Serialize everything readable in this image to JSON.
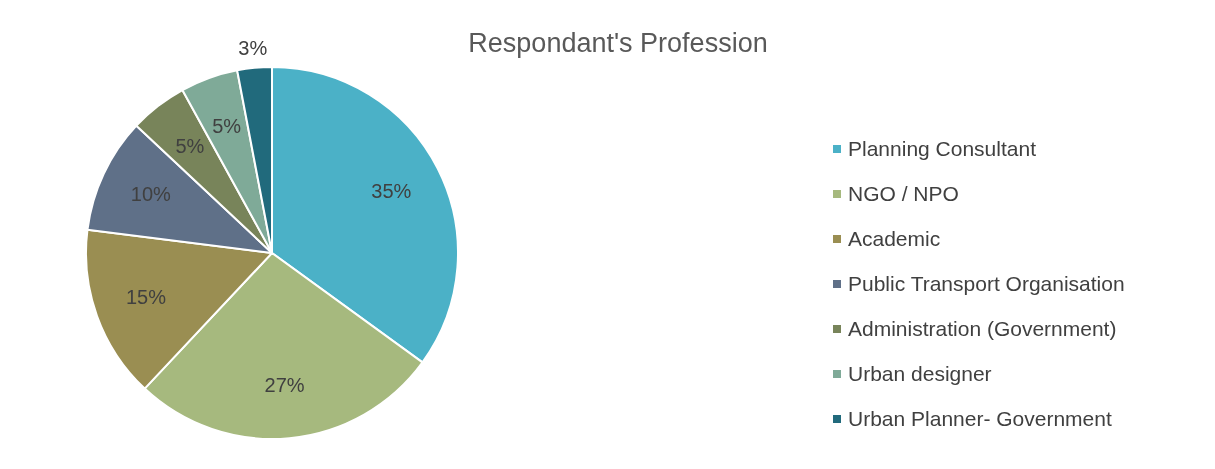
{
  "chart_data": {
    "type": "pie",
    "title": "Respondant's Profession",
    "categories": [
      "Planning Consultant",
      "NGO / NPO",
      "Academic",
      "Public Transport Organisation",
      "Administration (Government)",
      "Urban designer",
      "Urban Planner- Government"
    ],
    "values": [
      35,
      27,
      15,
      10,
      5,
      5,
      3
    ],
    "colors": [
      "#4bb1c7",
      "#a6b97e",
      "#9a8e52",
      "#5f7088",
      "#78845a",
      "#7faa98",
      "#216a7c"
    ],
    "value_labels": [
      "35%",
      "27%",
      "15%",
      "10%",
      "5%",
      "5%",
      "3%"
    ],
    "legend": "right"
  }
}
